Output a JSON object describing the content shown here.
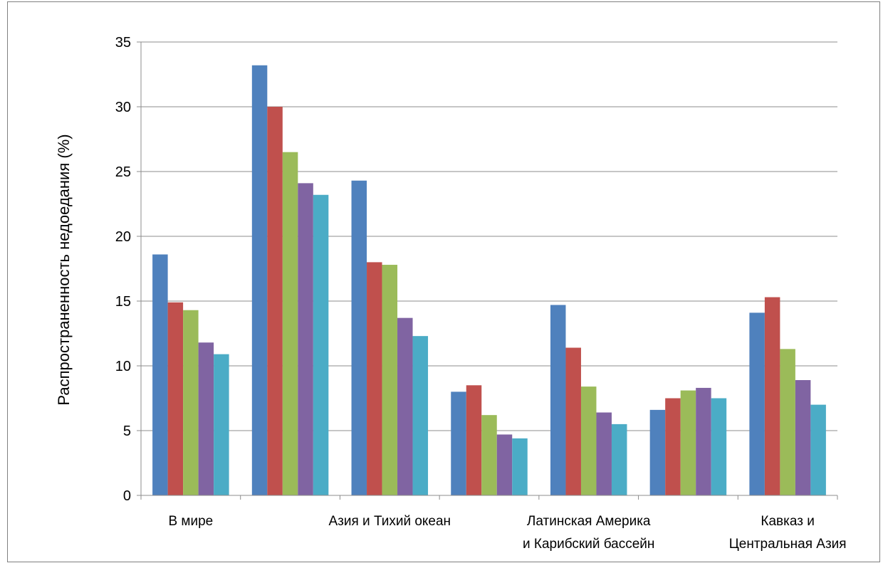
{
  "chart_data": {
    "type": "bar",
    "title": "",
    "xlabel": "",
    "ylabel": "Распространенность недоедания (%)",
    "ylim": [
      0,
      35
    ],
    "yticks": [
      0,
      5,
      10,
      15,
      20,
      25,
      30,
      35
    ],
    "grid": true,
    "legend": "none",
    "categories": [
      [
        "В мире"
      ],
      [
        ""
      ],
      [
        "Азия и Тихий океан"
      ],
      [
        ""
      ],
      [
        "Латинская Америка",
        "и Карибский бассейн"
      ],
      [
        ""
      ],
      [
        "Кавказ и",
        "Центральная Азия"
      ]
    ],
    "series": [
      {
        "color": "#4F81BD",
        "values": [
          18.6,
          33.2,
          24.3,
          8.0,
          14.7,
          6.6,
          14.1
        ]
      },
      {
        "color": "#C0504D",
        "values": [
          14.9,
          30.0,
          18.0,
          8.5,
          11.4,
          7.5,
          15.3
        ]
      },
      {
        "color": "#9BBB59",
        "values": [
          14.3,
          26.5,
          17.8,
          6.2,
          8.4,
          8.1,
          11.3
        ]
      },
      {
        "color": "#8064A2",
        "values": [
          11.8,
          24.1,
          13.7,
          4.7,
          6.4,
          8.3,
          8.9
        ]
      },
      {
        "color": "#4BACC6",
        "values": [
          10.9,
          23.2,
          12.3,
          4.4,
          5.5,
          7.5,
          7.0
        ]
      }
    ]
  }
}
